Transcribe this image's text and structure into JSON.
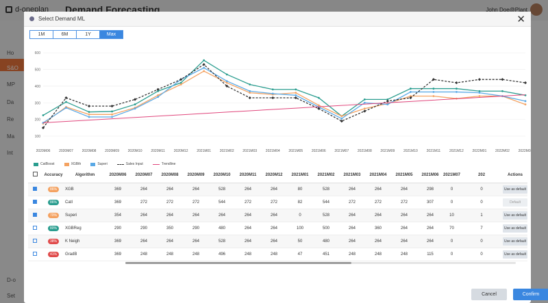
{
  "app": {
    "brand": "d-oneplan",
    "page_title": "Demand Forecasting",
    "user": "John Doe@Plant",
    "sidebar": [
      "Ho",
      "S&O",
      "MP",
      "Da",
      "Re",
      "Ma",
      "Int",
      "D-o",
      "Set"
    ]
  },
  "modal": {
    "title": "Select Demand ML",
    "range_tabs": [
      "1M",
      "6M",
      "1Y",
      "Max"
    ],
    "active_tab": "Max",
    "cancel_label": "Cancel",
    "confirm_label": "Confirm"
  },
  "chart_data": {
    "type": "line",
    "x": [
      "2020M06",
      "2020M07",
      "2020M08",
      "2020M09",
      "2020M10",
      "2020M11",
      "2020M12",
      "2021M01",
      "2021M02",
      "2021M03",
      "2021M04",
      "2021M05",
      "2021M06",
      "2021M07",
      "2021M08",
      "2021M09",
      "2021M10",
      "2021M11",
      "2021M12",
      "2022M01",
      "2022M02",
      "2022M03"
    ],
    "yticks": [
      100,
      200,
      300,
      400,
      500,
      600
    ],
    "ylim": [
      100,
      650
    ],
    "series": [
      {
        "name": "CatBoost",
        "color": "#2a9d8f",
        "values": [
          225,
          305,
          245,
          248,
          290,
          370,
          420,
          555,
          470,
          410,
          380,
          380,
          330,
          220,
          320,
          320,
          385,
          385,
          385,
          370,
          370,
          345
        ]
      },
      {
        "name": "XGBth",
        "color": "#f4a261",
        "values": [
          175,
          275,
          230,
          230,
          270,
          345,
          410,
          490,
          420,
          360,
          350,
          360,
          285,
          220,
          265,
          295,
          340,
          340,
          325,
          340,
          340,
          290
        ]
      },
      {
        "name": "Superi",
        "color": "#5aa9e6",
        "values": [
          180,
          270,
          215,
          215,
          265,
          335,
          440,
          510,
          430,
          370,
          355,
          345,
          275,
          205,
          300,
          290,
          365,
          365,
          365,
          360,
          340,
          310
        ]
      },
      {
        "name": "Sales Input",
        "color": "#333333",
        "dashed": true,
        "values": [
          150,
          330,
          280,
          280,
          320,
          380,
          440,
          530,
          400,
          330,
          330,
          330,
          265,
          190,
          250,
          310,
          330,
          440,
          420,
          440,
          440,
          420
        ]
      },
      {
        "name": "Trendline",
        "color": "#e0457b",
        "values": [
          180,
          188,
          196,
          204,
          212,
          220,
          228,
          236,
          244,
          252,
          260,
          268,
          276,
          284,
          292,
          300,
          308,
          316,
          324,
          332,
          340,
          348
        ]
      }
    ]
  },
  "table": {
    "headers": [
      "Accuracy",
      "Algorithm",
      "2020M06",
      "2020M07",
      "2020M08",
      "2020M09",
      "2020M10",
      "2020M11",
      "2020M12",
      "2021M01",
      "2021M02",
      "2021M03",
      "2021M04",
      "2021M05",
      "2021M06",
      "2021M07",
      "202",
      "Actions"
    ],
    "rows": [
      {
        "checked": true,
        "accuracy": "86%",
        "color": "#f4a261",
        "algorithm": "XGB",
        "values": [
          "369",
          "264",
          "264",
          "264",
          "528",
          "264",
          "264",
          "80",
          "528",
          "264",
          "264",
          "264",
          "298",
          "0",
          "0"
        ],
        "action": "Use as default",
        "disabled": false
      },
      {
        "checked": true,
        "accuracy": "86%",
        "color": "#2a9d8f",
        "algorithm": "CatI",
        "values": [
          "369",
          "272",
          "272",
          "272",
          "544",
          "272",
          "272",
          "82",
          "544",
          "272",
          "272",
          "272",
          "307",
          "0",
          "0"
        ],
        "action": "Default",
        "disabled": true
      },
      {
        "checked": true,
        "accuracy": "70%",
        "color": "#f4a261",
        "algorithm": "Superi",
        "values": [
          "354",
          "264",
          "264",
          "264",
          "264",
          "264",
          "264",
          "0",
          "528",
          "264",
          "264",
          "264",
          "264",
          "10",
          "1"
        ],
        "action": "Use as default",
        "disabled": false
      },
      {
        "checked": false,
        "accuracy": "80%",
        "color": "#2a9d8f",
        "algorithm": "XGBReg",
        "values": [
          "290",
          "290",
          "350",
          "290",
          "480",
          "264",
          "264",
          "100",
          "500",
          "264",
          "360",
          "264",
          "264",
          "70",
          "7"
        ],
        "action": "Use as default",
        "disabled": false
      },
      {
        "checked": false,
        "accuracy": "38%",
        "color": "#e04b4b",
        "algorithm": "K Neigh",
        "values": [
          "369",
          "264",
          "264",
          "264",
          "528",
          "264",
          "264",
          "50",
          "480",
          "264",
          "264",
          "264",
          "264",
          "0",
          "0"
        ],
        "action": "Use as default",
        "disabled": false
      },
      {
        "checked": false,
        "accuracy": "41%",
        "color": "#e04b4b",
        "algorithm": "GradB",
        "values": [
          "369",
          "248",
          "248",
          "248",
          "496",
          "248",
          "248",
          "47",
          "451",
          "248",
          "248",
          "248",
          "115",
          "0",
          "0"
        ],
        "action": "Use as default",
        "disabled": false
      }
    ]
  }
}
